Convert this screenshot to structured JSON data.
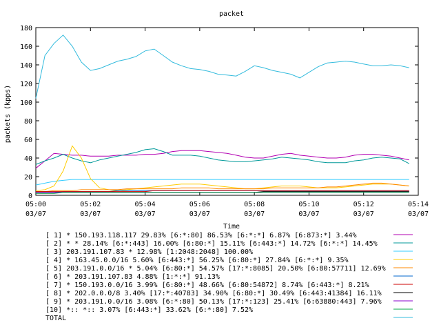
{
  "chart_data": {
    "type": "line",
    "title": "packet",
    "xlabel": "Time",
    "ylabel": "packets (kpps)",
    "ylim": [
      0,
      180
    ],
    "yticks": [
      0,
      20,
      40,
      60,
      80,
      100,
      120,
      140,
      160,
      180
    ],
    "xlim": [
      "05:00",
      "05:14"
    ],
    "xticks": [
      {
        "time": "05:00",
        "date": "03/07"
      },
      {
        "time": "05:02",
        "date": "03/07"
      },
      {
        "time": "05:04",
        "date": "03/07"
      },
      {
        "time": "05:06",
        "date": "03/07"
      },
      {
        "time": "05:08",
        "date": "03/07"
      },
      {
        "time": "05:10",
        "date": "03/07"
      },
      {
        "time": "05:12",
        "date": "03/07"
      },
      {
        "time": "05:14",
        "date": "03/07"
      }
    ],
    "grid": false,
    "legend_position": "bottom",
    "x": [
      "05:00",
      "05:00:20",
      "05:00:40",
      "05:01",
      "05:01:20",
      "05:01:40",
      "05:02",
      "05:02:20",
      "05:02:40",
      "05:03",
      "05:03:20",
      "05:03:40",
      "05:04",
      "05:04:20",
      "05:04:40",
      "05:05",
      "05:05:20",
      "05:05:40",
      "05:06",
      "05:06:20",
      "05:06:40",
      "05:07",
      "05:07:20",
      "05:07:40",
      "05:08",
      "05:08:20",
      "05:08:40",
      "05:09",
      "05:09:20",
      "05:09:40",
      "05:10",
      "05:10:20",
      "05:10:40",
      "05:11",
      "05:11:20",
      "05:11:40",
      "05:12",
      "05:12:20",
      "05:12:40",
      "05:13",
      "05:13:20",
      "05:13:40"
    ],
    "series": [
      {
        "name": "[ 1] * 150.193.118.117 29.83%  [6:*:80] 86.53% [6:*:*] 6.87% [6:873:*] 3.44%",
        "color": "#b200b2",
        "values": [
          29,
          37,
          45,
          44,
          43,
          43,
          42,
          42,
          42,
          43,
          43,
          43,
          44,
          44,
          45,
          47,
          48,
          48,
          48,
          47,
          46,
          45,
          43,
          41,
          40,
          40,
          42,
          44,
          45,
          43,
          42,
          41,
          40,
          40,
          41,
          43,
          44,
          44,
          43,
          42,
          40,
          38
        ]
      },
      {
        "name": "[ 2] * * 28.14%  [6:*:443] 16.00% [6:80:*] 15.11% [6:443:*] 14.72% [6:*:*] 14.45%",
        "color": "#009999",
        "values": [
          33,
          37,
          40,
          44,
          40,
          37,
          35,
          38,
          40,
          42,
          44,
          46,
          49,
          50,
          47,
          43,
          43,
          43,
          42,
          40,
          38,
          37,
          36,
          36,
          37,
          38,
          39,
          41,
          40,
          39,
          38,
          36,
          35,
          35,
          35,
          37,
          38,
          40,
          41,
          40,
          39,
          34
        ]
      },
      {
        "name": "[ 3] 203.191.107.83 * 12.98%  [1:2048:2048] 100.00%",
        "color": "#33ccff",
        "values": [
          11,
          13,
          15,
          16,
          17,
          17,
          17,
          17,
          17,
          17,
          17,
          17,
          17,
          17,
          17,
          17,
          17,
          17,
          17,
          17,
          17,
          17,
          17,
          17,
          17,
          17,
          17,
          17,
          17,
          17,
          17,
          17,
          17,
          17,
          17,
          17,
          17,
          17,
          17,
          17,
          17,
          17
        ]
      },
      {
        "name": "[ 4] * 163.45.0.0/16 5.60%  [6:443:*] 56.25% [6:80:*] 27.84% [6:*:*] 9.35%",
        "color": "#ffcc00",
        "values": [
          5,
          6,
          10,
          26,
          53,
          40,
          18,
          8,
          6,
          5,
          6,
          7,
          8,
          9,
          10,
          11,
          12,
          12,
          12,
          11,
          10,
          9,
          8,
          7,
          7,
          8,
          9,
          10,
          10,
          10,
          9,
          8,
          8,
          8,
          9,
          10,
          11,
          12,
          12,
          12,
          11,
          10
        ]
      },
      {
        "name": "[ 5] 203.191.0.0/16 * 5.04%  [6:80:*] 54.57% [17:*:8085] 20.50% [6:80:57711] 12.69%",
        "color": "#ff8800",
        "values": [
          4,
          4,
          5,
          5,
          5,
          6,
          6,
          6,
          6,
          6,
          7,
          7,
          7,
          7,
          7,
          7,
          8,
          8,
          8,
          8,
          7,
          7,
          7,
          7,
          7,
          7,
          8,
          8,
          8,
          8,
          8,
          8,
          9,
          9,
          10,
          11,
          12,
          13,
          13,
          12,
          11,
          10
        ]
      },
      {
        "name": "[ 6] * 203.191.107.83 4.88%  [1:*:*] 91.13%",
        "color": "#0066cc",
        "values": [
          3,
          3,
          3,
          4,
          4,
          4,
          4,
          4,
          4,
          5,
          5,
          5,
          5,
          5,
          5,
          5,
          5,
          5,
          5,
          5,
          5,
          5,
          5,
          5,
          5,
          5,
          5,
          5,
          5,
          5,
          5,
          5,
          5,
          5,
          5,
          5,
          5,
          5,
          5,
          5,
          5,
          5
        ]
      },
      {
        "name": "[ 7] * 150.193.0.0/16 3.99%  [6:80:*] 48.66% [6:80:54872] 8.74% [6:443:*] 8.21%",
        "color": "#cc0000",
        "values": [
          4,
          4,
          4,
          4,
          4,
          4,
          4,
          4,
          4,
          4,
          4,
          4,
          4,
          5,
          5,
          5,
          5,
          5,
          5,
          5,
          5,
          5,
          5,
          5,
          5,
          5,
          5,
          5,
          5,
          5,
          5,
          5,
          5,
          5,
          5,
          5,
          5,
          5,
          5,
          5,
          5,
          5
        ]
      },
      {
        "name": "[ 8] * 202.0.0.0/8 3.40%  [17:*:40783] 34.90% [6:80:*] 30.49% [6:443:41384] 16.11%",
        "color": "#000000",
        "values": [
          3,
          3,
          3,
          3,
          3,
          3,
          3,
          3,
          3,
          3,
          3,
          3,
          3,
          3,
          3,
          3,
          3,
          3,
          3,
          3,
          3,
          3,
          3,
          3,
          3,
          4,
          4,
          4,
          4,
          4,
          4,
          4,
          4,
          4,
          4,
          4,
          4,
          4,
          4,
          4,
          4,
          4
        ]
      },
      {
        "name": "[ 9] * 203.191.0.0/16 3.08%  [6:*:80] 50.13% [17:*:123] 25.41% [6:63880:443] 7.96%",
        "color": "#8800cc",
        "values": [
          3,
          3,
          3,
          3,
          3,
          3,
          3,
          3,
          3,
          3,
          3,
          3,
          3,
          3,
          3,
          3,
          3,
          3,
          3,
          3,
          3,
          3,
          3,
          3,
          3,
          3,
          3,
          3,
          3,
          3,
          3,
          3,
          3,
          3,
          3,
          3,
          3,
          3,
          3,
          3,
          3,
          3
        ]
      },
      {
        "name": "[10] *:: *:: 3.07%  [6:443:*] 33.62% [6:*:80] 7.52%",
        "color": "#00aa44",
        "values": [
          2,
          2,
          2,
          3,
          3,
          3,
          3,
          3,
          3,
          3,
          3,
          3,
          3,
          3,
          3,
          3,
          3,
          3,
          3,
          3,
          3,
          3,
          3,
          3,
          3,
          3,
          3,
          3,
          3,
          3,
          3,
          3,
          3,
          3,
          3,
          3,
          3,
          3,
          3,
          3,
          3,
          3
        ]
      },
      {
        "name": "TOTAL",
        "color": "#33bbdd",
        "values": [
          104,
          150,
          163,
          172,
          160,
          143,
          134,
          136,
          140,
          144,
          146,
          149,
          155,
          157,
          150,
          143,
          139,
          136,
          135,
          133,
          130,
          129,
          128,
          133,
          139,
          137,
          134,
          132,
          130,
          126,
          132,
          138,
          142,
          143,
          144,
          143,
          141,
          139,
          139,
          140,
          139,
          137
        ]
      }
    ]
  }
}
